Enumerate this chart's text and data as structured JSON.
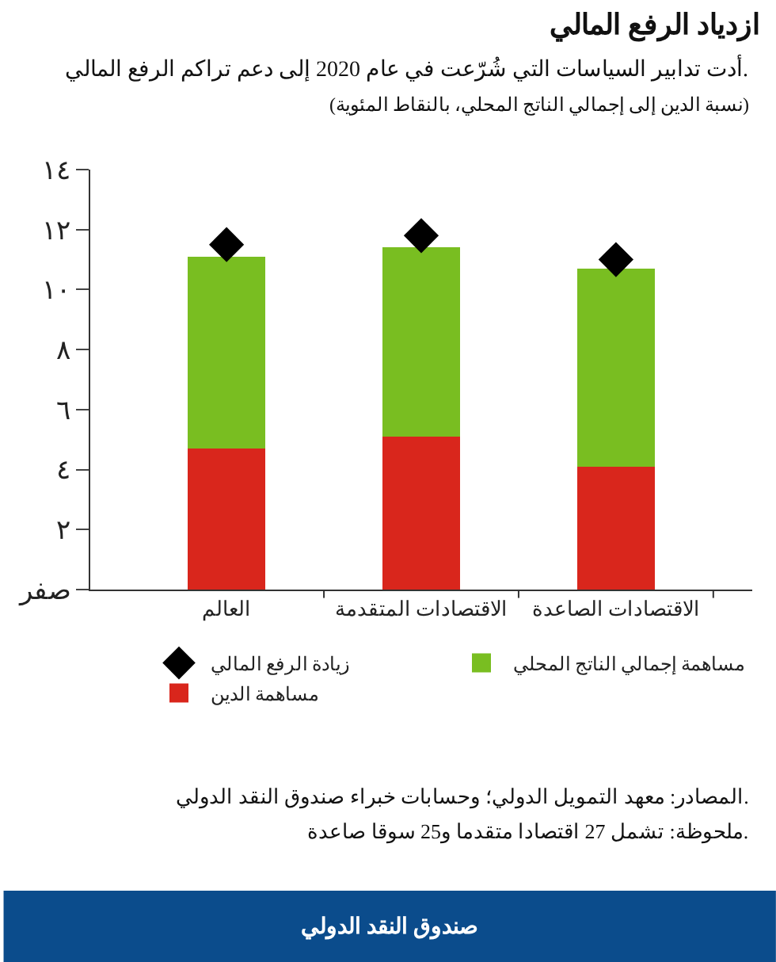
{
  "chart_data": {
    "type": "bar",
    "title": "ازدياد الرفع المالي",
    "subtitle": "أدت تدابير السياسات التي شُرّعت في عام 2020 إلى دعم تراكم الرفع المالي.",
    "ylabel": "(نسبة الدين إلى إجمالي الناتج المحلي، بالنقاط المئوية)",
    "categories": [
      "العالم",
      "الاقتصادات المتقدمة",
      "الاقتصادات الصاعدة"
    ],
    "stacked": true,
    "series": [
      {
        "name": "مساهمة الدين",
        "color": "#d9261c",
        "values": [
          4.7,
          5.1,
          4.1
        ]
      },
      {
        "name": "مساهمة إجمالي الناتج المحلي",
        "color": "#79be21",
        "values": [
          6.4,
          6.3,
          6.6
        ]
      },
      {
        "name": "زيادة الرفع المالي",
        "type": "scatter",
        "marker": "diamond",
        "color": "#000000",
        "x": [
          "العالم",
          "الاقتصادات المتقدمة",
          "الاقتصادات الصاعدة"
        ],
        "values": [
          11.5,
          11.8,
          11.0
        ]
      }
    ],
    "ylim": [
      0,
      14
    ],
    "yticks": [
      {
        "value": 0,
        "label": "صفر"
      },
      {
        "value": 2,
        "label": "٢"
      },
      {
        "value": 4,
        "label": "٤"
      },
      {
        "value": 6,
        "label": "٦"
      },
      {
        "value": 8,
        "label": "٨"
      },
      {
        "value": 10,
        "label": "١٠"
      },
      {
        "value": 12,
        "label": "١٢"
      },
      {
        "value": 14,
        "label": "١٤"
      }
    ],
    "legend": "bottom",
    "annotations": [
      "المصادر: معهد التمويل الدولي؛ وحسابات خبراء صندوق النقد الدولي.",
      "ملحوظة: تشمل 27 اقتصادا متقدما و25 سوقا صاعدة.",
      "صندوق النقد الدولي"
    ]
  }
}
